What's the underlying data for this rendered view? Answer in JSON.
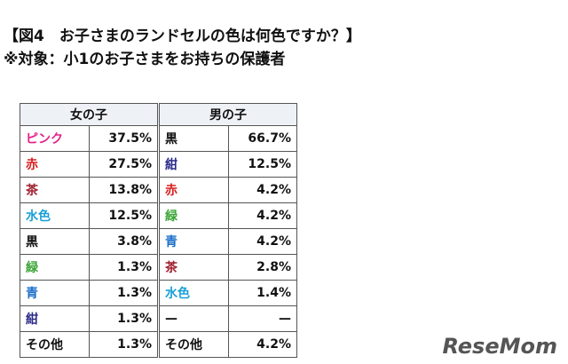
{
  "header": {
    "title": "【図4　お子さまのランドセルの色は何色ですか？】",
    "subtitle": "※対象：小1のお子さまをお持ちの保護者"
  },
  "table": {
    "columns": [
      "女の子",
      "男の子"
    ],
    "rows": [
      [
        {
          "label": "ピンク",
          "color": "#e4208a",
          "value": "37.5%"
        },
        {
          "label": "黒",
          "color": "#111111",
          "value": "66.7%"
        }
      ],
      [
        {
          "label": "赤",
          "color": "#d81e1e",
          "value": "27.5%"
        },
        {
          "label": "紺",
          "color": "#2a2a8a",
          "value": "12.5%"
        }
      ],
      [
        {
          "label": "茶",
          "color": "#a02030",
          "value": "13.8%"
        },
        {
          "label": "赤",
          "color": "#d81e1e",
          "value": "4.2%"
        }
      ],
      [
        {
          "label": "水色",
          "color": "#1aa0d8",
          "value": "12.5%"
        },
        {
          "label": "緑",
          "color": "#3aa535",
          "value": "4.2%"
        }
      ],
      [
        {
          "label": "黒",
          "color": "#111111",
          "value": "3.8%"
        },
        {
          "label": "青",
          "color": "#1a6ec8",
          "value": "4.2%"
        }
      ],
      [
        {
          "label": "緑",
          "color": "#3aa535",
          "value": "1.3%"
        },
        {
          "label": "茶",
          "color": "#a02030",
          "value": "2.8%"
        }
      ],
      [
        {
          "label": "青",
          "color": "#1a6ec8",
          "value": "1.3%"
        },
        {
          "label": "水色",
          "color": "#1aa0d8",
          "value": "1.4%"
        }
      ],
      [
        {
          "label": "紺",
          "color": "#2a2a8a",
          "value": "1.3%"
        },
        {
          "label": "—",
          "color": "#111111",
          "value": "—"
        }
      ],
      [
        {
          "label": "その他",
          "color": "#111111",
          "value": "1.3%"
        },
        {
          "label": "その他",
          "color": "#111111",
          "value": "4.2%"
        }
      ]
    ]
  },
  "logo": "ReseMom"
}
